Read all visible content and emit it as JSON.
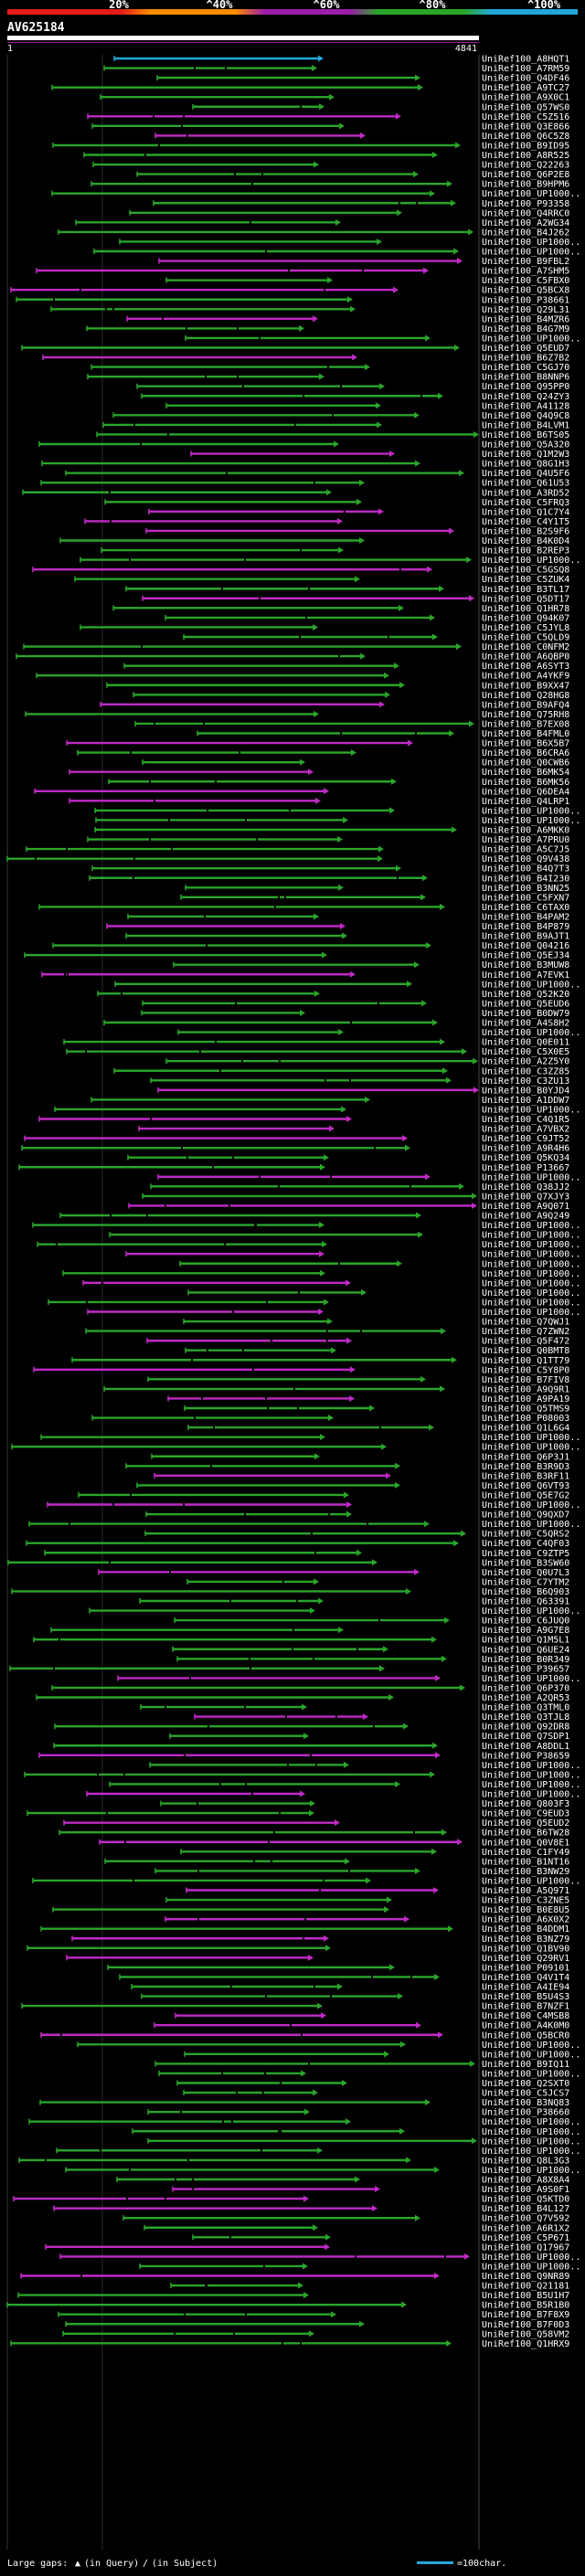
{
  "query_id": "AV625184",
  "ruler": {
    "start": "1",
    "end": "4841"
  },
  "colors": {
    "identity_gradient": [
      "#e51c1c",
      "#ff8c00",
      "#9b1ea8",
      "#2aa52a",
      "#21a6d8"
    ],
    "ruler": "#ffffff",
    "ruler_stripe": "#9b1ea8"
  },
  "legend": {
    "gaps_prefix": "Large gaps:",
    "gaps_query_mark": "▲",
    "gaps_query": "(in Query)",
    "gaps_subject_mark": "/",
    "gaps_subject": "(in Subject)",
    "scale_text": "=100char."
  },
  "chart_data": {
    "type": "alignment-overview",
    "title": "AV625184",
    "x_range": [
      1,
      4841
    ],
    "axis_ticks": [
      "20%",
      "^40%",
      "^60%",
      "^80%",
      "^100%"
    ],
    "hit_labels": [
      "UniRef100_A8HQT1",
      "UniRef100_A7RM59",
      "UniRef100_Q4DF46",
      "UniRef100_A9TC27",
      "UniRef100_A9X0C1",
      "UniRef100_Q57WS0",
      "UniRef100_C5Z516",
      "UniRef100_Q3E866",
      "UniRef100_Q6C5Z8",
      "UniRef100_B9ID95",
      "UniRef100_A8R525",
      "UniRef100_Q22263",
      "UniRef100_Q6P2E8",
      "UniRef100_B9HPM6",
      "UniRef100_UP1000..",
      "UniRef100_P93358",
      "UniRef100_Q4RRC0",
      "UniRef100_A2WG34",
      "UniRef100_B4J262",
      "UniRef100_UP1000..",
      "UniRef100_UP1000..",
      "UniRef100_B9FBL2",
      "UniRef100_A7SHM5",
      "UniRef100_C5FBX0",
      "UniRef100_Q5BCX8",
      "UniRef100_P38661",
      "UniRef100_Q29L31",
      "UniRef100_B4MZR6",
      "UniRef100_B4G7M9",
      "UniRef100_UP1000..",
      "UniRef100_Q5EUD7",
      "UniRef100_B6Z7B2",
      "UniRef100_C5GJ70",
      "UniRef100_B8NNP6",
      "UniRef100_Q95PP0",
      "UniRef100_Q24ZY3",
      "UniRef100_A41128",
      "UniRef100_Q4Q9C8",
      "UniRef100_B4LVM1",
      "UniRef100_B6TS05",
      "UniRef100_Q5A320",
      "UniRef100_Q1M2W3",
      "UniRef100_Q8G1H3",
      "UniRef100_Q4U5F6",
      "UniRef100_Q61U53",
      "UniRef100_A3RD52",
      "UniRef100_C5FRQ3",
      "UniRef100_Q1C7Y4",
      "UniRef100_C4Y1T5",
      "UniRef100_B2S9F6",
      "UniRef100_B4K0D4",
      "UniRef100_B2REP3",
      "UniRef100_UP1000..",
      "UniRef100_C5GSQ8",
      "UniRef100_C5ZUK4",
      "UniRef100_B3TL17",
      "UniRef100_Q5DT17",
      "UniRef100_Q1HR78",
      "UniRef100_Q94K07",
      "UniRef100_C5JYL8",
      "UniRef100_C5QLD9",
      "UniRef100_C0NFM2",
      "UniRef100_A6QBP0",
      "UniRef100_A6SYT3",
      "UniRef100_A4YKF9",
      "UniRef100_B9XX47",
      "UniRef100_Q28HG8",
      "UniRef100_B9AFQ4",
      "UniRef100_Q75RH8",
      "UniRef100_B7EX08",
      "UniRef100_B4FML0",
      "UniRef100_B6X5B7",
      "UniRef100_B6CRA6",
      "UniRef100_Q0CWB6",
      "UniRef100_B6MK54",
      "UniRef100_B6MK56",
      "UniRef100_Q6DEA4",
      "UniRef100_Q4LRP1",
      "UniRef100_UP1000..",
      "UniRef100_UP1000..",
      "UniRef100_A6MKK0",
      "UniRef100_A7PRU0",
      "UniRef100_A5C7J5",
      "UniRef100_Q9V438",
      "UniRef100_B4Q7T3",
      "UniRef100_B4I230",
      "UniRef100_B3NN25",
      "UniRef100_C5FXN7",
      "UniRef100_C6TAX0",
      "UniRef100_B4PAM2",
      "UniRef100_B4P879",
      "UniRef100_B9AJT1",
      "UniRef100_Q04216",
      "UniRef100_Q5EJ34",
      "UniRef100_B3MUW8",
      "UniRef100_A7EVK1",
      "UniRef100_UP1000..",
      "UniRef100_Q52K20",
      "UniRef100_Q5EUD6",
      "UniRef100_B0DW79",
      "UniRef100_A4S8H2",
      "UniRef100_UP1000..",
      "UniRef100_Q0E011",
      "UniRef100_C5X0E5",
      "UniRef100_A2Z5Y0",
      "UniRef100_C3ZZ85",
      "UniRef100_C3ZU13",
      "UniRef100_B0YJD4",
      "UniRef100_A1DDW7",
      "UniRef100_UP1000..",
      "UniRef100_C4Q1R5",
      "UniRef100_A7VBX2",
      "UniRef100_C9JT52",
      "UniRef100_A9R4H6",
      "UniRef100_Q5KQ34",
      "UniRef100_P13667",
      "UniRef100_UP1000..",
      "UniRef100_Q38JJ2",
      "UniRef100_Q7XJY3",
      "UniRef100_A9Q071",
      "UniRef100_A9Q249",
      "UniRef100_UP1000..",
      "UniRef100_UP1000..",
      "UniRef100_UP1000..",
      "UniRef100_UP1000..",
      "UniRef100_UP1000..",
      "UniRef100_UP1000..",
      "UniRef100_UP1000..",
      "UniRef100_UP1000..",
      "UniRef100_UP1000..",
      "UniRef100_UP1000..",
      "UniRef100_Q7QWJ1",
      "UniRef100_Q7ZWN2",
      "UniRef100_Q5F472",
      "UniRef100_Q0BMT8",
      "UniRef100_Q1TT79",
      "UniRef100_C5Y8P0",
      "UniRef100_B7FIV8",
      "UniRef100_A9Q9R1",
      "UniRef100_A9PA19",
      "UniRef100_Q5TMS9",
      "UniRef100_P08003",
      "UniRef100_Q1L6G4",
      "UniRef100_UP1000..",
      "UniRef100_UP1000..",
      "UniRef100_Q6P3J1",
      "UniRef100_B3R9D3",
      "UniRef100_B3RF11",
      "UniRef100_Q6VT93",
      "UniRef100_Q5E7G2",
      "UniRef100_UP1000..",
      "UniRef100_Q9QXD7",
      "UniRef100_UP1000..",
      "UniRef100_C5QRS2",
      "UniRef100_C4QF03",
      "UniRef100_C9ZTP5",
      "UniRef100_B3SW60",
      "UniRef100_Q0U7L3",
      "UniRef100_C7YTM2",
      "UniRef100_B6Q903",
      "UniRef100_Q63391",
      "UniRef100_UP1000..",
      "UniRef100_C6JUQ0",
      "UniRef100_A9G7E8",
      "UniRef100_Q1M5L1",
      "UniRef100_Q6UE24",
      "UniRef100_B0R349",
      "UniRef100_P39657",
      "UniRef100_UP1000..",
      "UniRef100_Q6P370",
      "UniRef100_A2QR53",
      "UniRef100_Q3TML0",
      "UniRef100_Q3TJL8",
      "UniRef100_Q92DR8",
      "UniRef100_Q7SDP1",
      "UniRef100_A8DDL1",
      "UniRef100_P38659",
      "UniRef100_UP1000..",
      "UniRef100_UP1000..",
      "UniRef100_UP1000..",
      "UniRef100_UP1000..",
      "UniRef100_Q803F3",
      "UniRef100_C9EUD3",
      "UniRef100_Q5EUD2",
      "UniRef100_B6TW28",
      "UniRef100_Q0V8E1",
      "UniRef100_C1FY49",
      "UniRef100_B1NT16",
      "UniRef100_B3NW29",
      "UniRef100_UP1000..",
      "UniRef100_A5Q971",
      "UniRef100_C3ZNE5",
      "UniRef100_B0E8U5",
      "UniRef100_A6X0X2",
      "UniRef100_B4DDM1",
      "UniRef100_B3NZ79",
      "UniRef100_Q1BV90",
      "UniRef100_Q29RV1",
      "UniRef100_P09101",
      "UniRef100_Q4V1T4",
      "UniRef100_A4IE94",
      "UniRef100_B5U4S3",
      "UniRef100_B7NZF1",
      "UniRef100_C4MSB8",
      "UniRef100_A4K0M0",
      "UniRef100_Q5BCR0",
      "UniRef100_UP1000..",
      "UniRef100_UP1000..",
      "UniRef100_B9IQ11",
      "UniRef100_UP1000..",
      "UniRef100_Q2SXT0",
      "UniRef100_C5JCS7",
      "UniRef100_B3NQ83",
      "UniRef100_P38660",
      "UniRef100_UP1000..",
      "UniRef100_UP1000..",
      "UniRef100_UP1000..",
      "UniRef100_UP1000..",
      "UniRef100_Q8L3G3",
      "UniRef100_UP1000..",
      "UniRef100_A8X8A4",
      "UniRef100_A9S0F1",
      "UniRef100_Q5KTD0",
      "UniRef100_B4L127",
      "UniRef100_Q7V592",
      "UniRef100_A6R1X2",
      "UniRef100_C5P671",
      "UniRef100_Q17967",
      "UniRef100_UP1000..",
      "UniRef100_UP1000..",
      "UniRef100_Q9NR89",
      "UniRef100_Q21181",
      "UniRef100_B5U1H7",
      "UniRef100_B5R1B0",
      "UniRef100_B7F8X9",
      "UniRef100_B7F0D3",
      "UniRef100_Q58VM2",
      "UniRef100_Q1HRX9"
    ]
  }
}
